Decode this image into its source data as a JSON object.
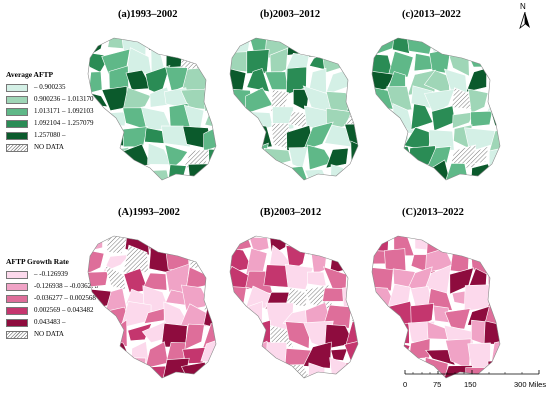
{
  "north_arrow": {
    "label": "N"
  },
  "top_row": {
    "panels": [
      {
        "label": "(a)1993–2002"
      },
      {
        "label": "(b)2003–2012"
      },
      {
        "label": "(c)2013–2022"
      }
    ],
    "legend": {
      "title": "Average AFTP",
      "items": [
        {
          "label": "– 0.900235",
          "color": "#d4f0e6"
        },
        {
          "label": "0.900236 – 1.013170",
          "color": "#9fd6b7"
        },
        {
          "label": "1.013171 – 1.092103",
          "color": "#5fb888"
        },
        {
          "label": "1.092104 – 1.257079",
          "color": "#2a8c55"
        },
        {
          "label": "1.257080 –",
          "color": "#0b5a2c"
        },
        {
          "label": "NO DATA",
          "color": "hatch"
        }
      ]
    }
  },
  "bottom_row": {
    "panels": [
      {
        "label": "(A)1993–2002"
      },
      {
        "label": "(B)2003–2012"
      },
      {
        "label": "(C)2013–2022"
      }
    ],
    "legend": {
      "title": "AFTP Growth Rate",
      "items": [
        {
          "label": "– -0.126939",
          "color": "#fcd9ec"
        },
        {
          "label": "-0.126938 – -0.036278",
          "color": "#f0a3c6"
        },
        {
          "label": "-0.036277 – 0.002568",
          "color": "#de6e9a"
        },
        {
          "label": "0.002569 – 0.043482",
          "color": "#c4366e"
        },
        {
          "label": "0.043483 –",
          "color": "#8e0c3e"
        },
        {
          "label": "NO DATA",
          "color": "hatch"
        }
      ]
    }
  },
  "scale_bar": {
    "ticks": [
      "0",
      "75",
      "150",
      "300 Miles"
    ]
  }
}
